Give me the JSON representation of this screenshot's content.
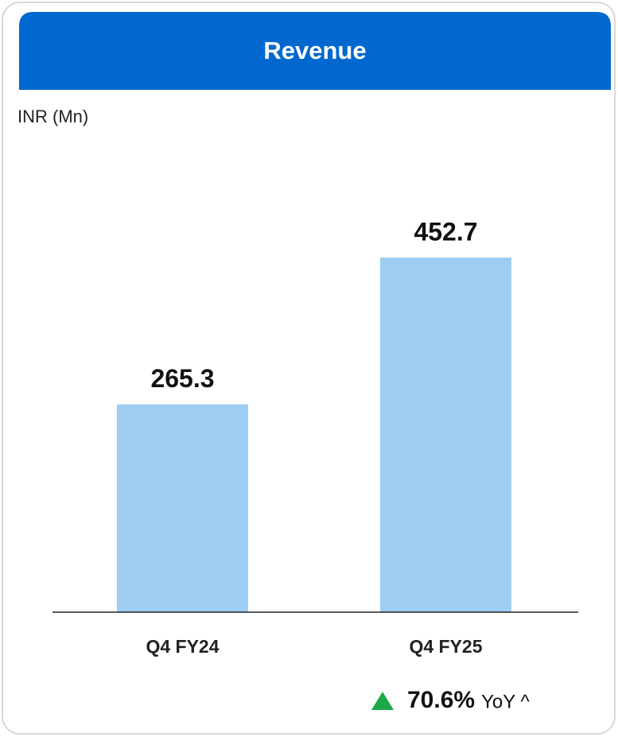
{
  "chart_data": {
    "type": "bar",
    "title": "Revenue",
    "subtitle": "INR (Mn)",
    "categories": [
      "Q4 FY24",
      "Q4 FY25"
    ],
    "values": [
      265.3,
      452.7
    ],
    "color": "#9dcdf0",
    "annotation": {
      "change": "70.6%",
      "text": "YoY ^"
    }
  }
}
